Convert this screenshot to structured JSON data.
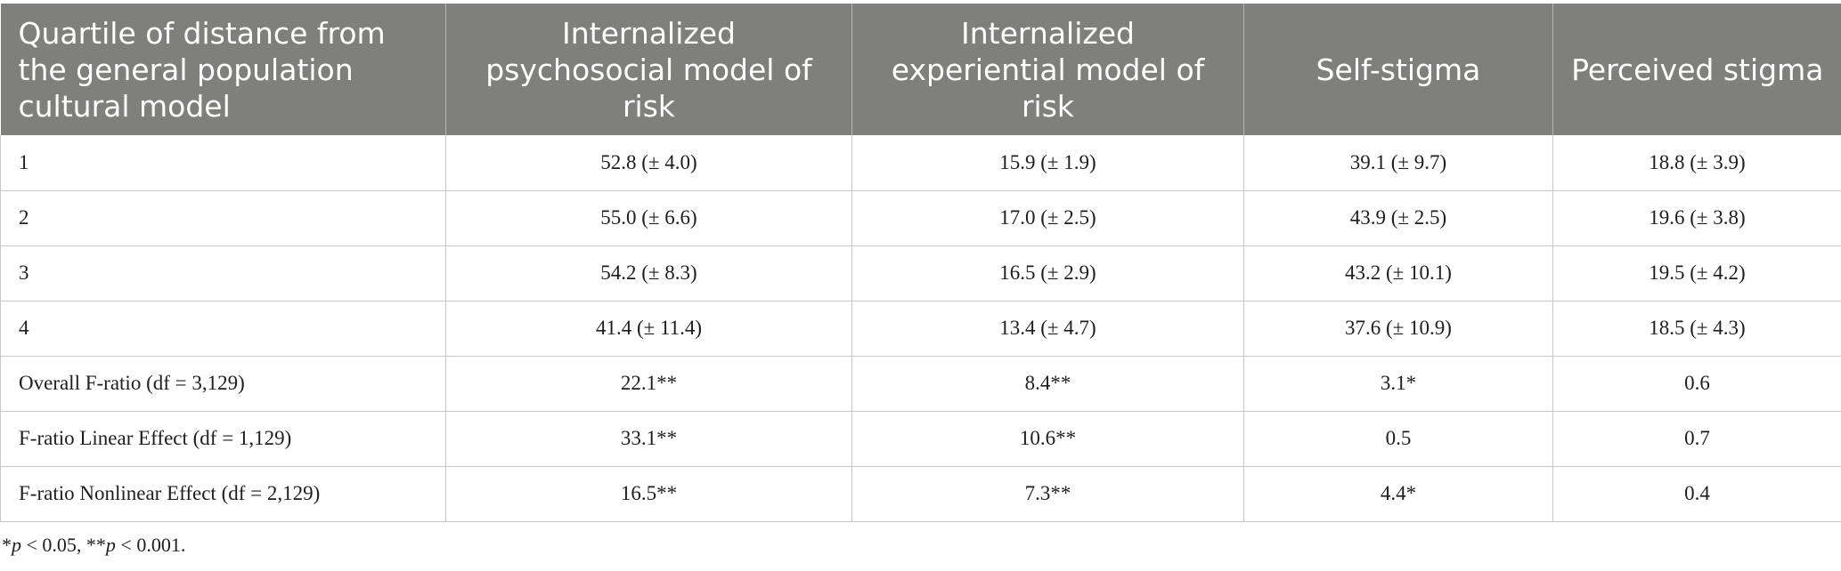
{
  "table": {
    "headers": [
      "Quartile of distance from the general population cultural model",
      "Internalized psychosocial model of risk",
      "Internalized experiential model of risk",
      "Self-stigma",
      "Perceived stigma"
    ],
    "rows": [
      [
        "1",
        "52.8 (± 4.0)",
        "15.9 (± 1.9)",
        "39.1 (± 9.7)",
        "18.8 (± 3.9)"
      ],
      [
        "2",
        "55.0 (± 6.6)",
        "17.0 (± 2.5)",
        "43.9 (± 2.5)",
        "19.6 (± 3.8)"
      ],
      [
        "3",
        "54.2 (± 8.3)",
        "16.5 (± 2.9)",
        "43.2 (± 10.1)",
        "19.5 (± 4.2)"
      ],
      [
        "4",
        "41.4 (± 11.4)",
        "13.4 (± 4.7)",
        "37.6 (± 10.9)",
        "18.5 (± 4.3)"
      ],
      [
        "Overall F-ratio (df = 3,129)",
        "22.1**",
        "8.4**",
        "3.1*",
        "0.6"
      ],
      [
        "F-ratio Linear Effect (df = 1,129)",
        "33.1**",
        "10.6**",
        "0.5",
        "0.7"
      ],
      [
        "F-ratio Nonlinear Effect (df = 2,129)",
        "16.5**",
        "7.3**",
        "4.4*",
        "0.4"
      ]
    ]
  },
  "footnote": {
    "star1": "*",
    "p1": "p",
    "t1": " < 0.05, ",
    "star2": "**",
    "p2": "p",
    "t2": " < 0.001."
  }
}
